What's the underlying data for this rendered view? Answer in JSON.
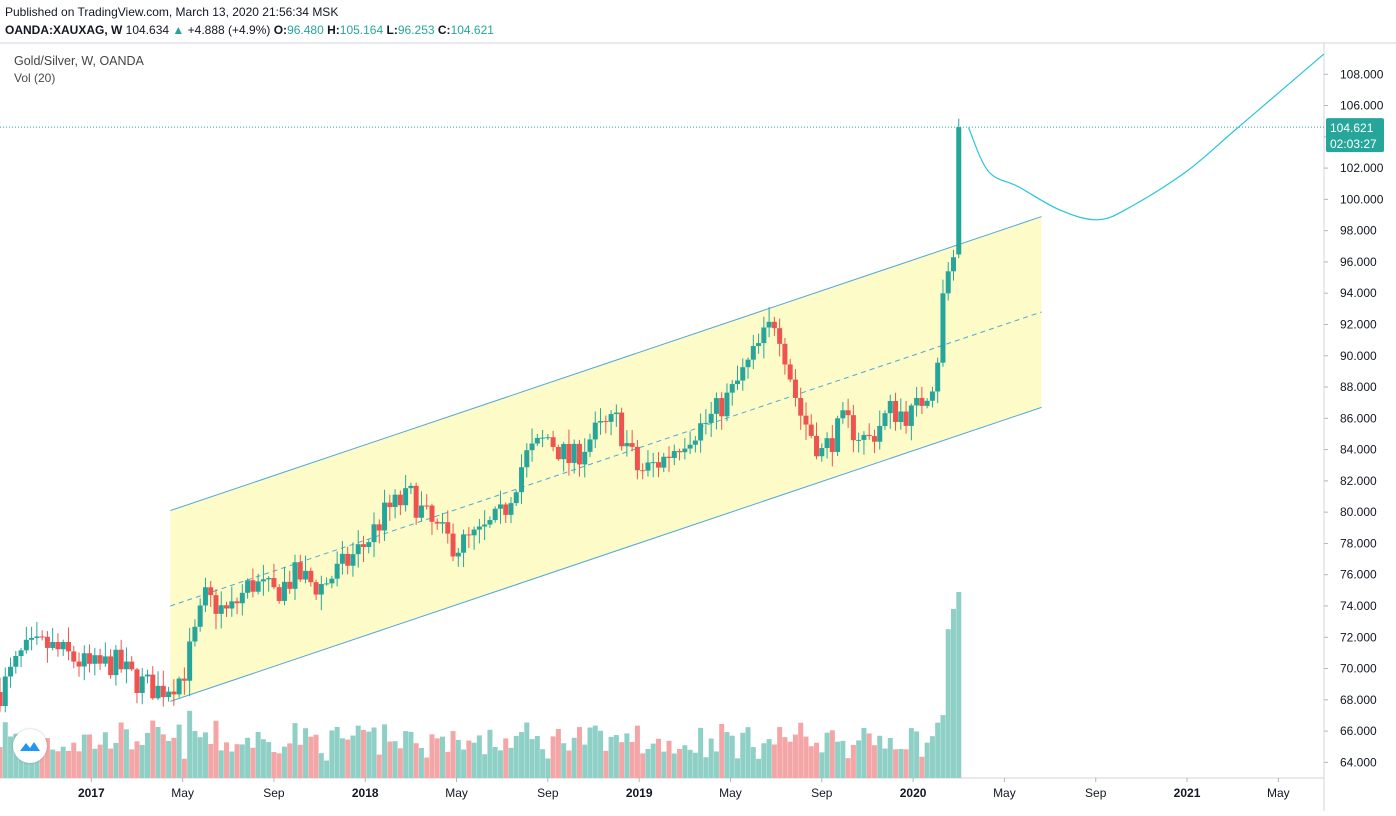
{
  "header": {
    "published": "Published on TradingView.com, March 13, 2020 21:56:34 MSK",
    "symbol": "OANDA:XAUXAG, W",
    "last": "104.634",
    "arrow": "▲",
    "change": "+4.888 (+4.9%)",
    "o_label": "O:",
    "o_value": "96.480",
    "h_label": "H:",
    "h_value": "105.164",
    "l_label": "L:",
    "l_value": "96.253",
    "c_label": "C:",
    "c_value": "104.621"
  },
  "legend": {
    "main": "Gold/Silver, W, OANDA",
    "volume": "Vol (20)"
  },
  "price_tag": {
    "price": "104.621",
    "countdown": "02:03:27"
  },
  "colors": {
    "up": "#26a69a",
    "down": "#ef5350",
    "vol_up": "#8fd0c6",
    "vol_down": "#f4a6a6",
    "channel_line": "#4fa7d8",
    "channel_fill": "#fdfbbf",
    "projection": "#26c6da",
    "price_line": "#26a69a"
  },
  "chart_data": {
    "type": "candlestick",
    "title": "Gold/Silver, W, OANDA",
    "ylim": [
      63,
      110
    ],
    "y_ticks": [
      64,
      66,
      68,
      70,
      72,
      74,
      76,
      78,
      80,
      82,
      84,
      86,
      88,
      90,
      92,
      94,
      96,
      98,
      100,
      102,
      104,
      106,
      108
    ],
    "y_tick_labels": [
      "64.000",
      "66.000",
      "68.000",
      "70.000",
      "72.000",
      "74.000",
      "76.000",
      "78.000",
      "80.000",
      "82.000",
      "84.000",
      "86.000",
      "88.000",
      "90.000",
      "92.000",
      "94.000",
      "96.000",
      "98.000",
      "100.000",
      "102.000",
      "104.000",
      "106.000",
      "108.000"
    ],
    "x_ticks": [
      "2017-01",
      "2017-05",
      "2017-09",
      "2018-01",
      "2018-05",
      "2018-09",
      "2019-01",
      "2019-05",
      "2019-09",
      "2020-01",
      "2020-05",
      "2020-09",
      "2021-01",
      "2021-05"
    ],
    "x_tick_labels": [
      "2017",
      "May",
      "Sep",
      "2018",
      "May",
      "Sep",
      "2019",
      "May",
      "Sep",
      "2020",
      "May",
      "Sep",
      "2021",
      "May"
    ],
    "x_range": [
      "2016-09",
      "2021-07"
    ],
    "last_price": 104.621,
    "close_path": [
      [
        "2016-09",
        68.5
      ],
      [
        "2016-10",
        71.0
      ],
      [
        "2016-11",
        71.5
      ],
      [
        "2016-12",
        70.8
      ],
      [
        "2017-01",
        70.0
      ],
      [
        "2017-02",
        70.4
      ],
      [
        "2017-03",
        69.2
      ],
      [
        "2017-04",
        68.6
      ],
      [
        "2017-05",
        69.5
      ],
      [
        "2017-06",
        74.5
      ],
      [
        "2017-07",
        73.5
      ],
      [
        "2017-08",
        75.5
      ],
      [
        "2017-09",
        74.8
      ],
      [
        "2017-10",
        76.0
      ],
      [
        "2017-11",
        75.2
      ],
      [
        "2017-12",
        76.5
      ],
      [
        "2018-01",
        78.0
      ],
      [
        "2018-02",
        80.2
      ],
      [
        "2018-03",
        81.0
      ],
      [
        "2018-04",
        79.0
      ],
      [
        "2018-05",
        77.8
      ],
      [
        "2018-06",
        78.5
      ],
      [
        "2018-07",
        79.8
      ],
      [
        "2018-08",
        83.5
      ],
      [
        "2018-09",
        84.8
      ],
      [
        "2018-10",
        83.2
      ],
      [
        "2018-11",
        85.0
      ],
      [
        "2018-12",
        85.8
      ],
      [
        "2019-01",
        82.5
      ],
      [
        "2019-02",
        83.3
      ],
      [
        "2019-03",
        84.8
      ],
      [
        "2019-04",
        85.8
      ],
      [
        "2019-05",
        87.5
      ],
      [
        "2019-06",
        90.0
      ],
      [
        "2019-07",
        92.5
      ],
      [
        "2019-08",
        86.5
      ],
      [
        "2019-09",
        83.8
      ],
      [
        "2019-10",
        85.8
      ],
      [
        "2019-11",
        84.5
      ],
      [
        "2019-12",
        86.5
      ],
      [
        "2020-01",
        86.2
      ],
      [
        "2020-02",
        88.8
      ],
      [
        "2020-03",
        104.621
      ]
    ],
    "channel": {
      "start_date": "2017-04-15",
      "end_date": "2020-06-20",
      "upper": [
        80.1,
        98.9
      ],
      "middle": [
        74.0,
        92.8
      ],
      "lower": [
        67.9,
        86.7
      ]
    },
    "projection": [
      [
        "2020-03-14",
        104.6
      ],
      [
        "2020-04-10",
        101.8
      ],
      [
        "2020-05-20",
        100.8
      ],
      [
        "2020-07-15",
        99.3
      ],
      [
        "2020-09-05",
        98.7
      ],
      [
        "2020-10-20",
        99.6
      ],
      [
        "2020-12-31",
        101.8
      ],
      [
        "2021-03-01",
        104.3
      ],
      [
        "2021-05-01",
        106.8
      ],
      [
        "2021-07-01",
        109.3
      ]
    ],
    "volume_series": {
      "name": "Vol (20)",
      "scale": [
        0,
        1
      ]
    }
  }
}
